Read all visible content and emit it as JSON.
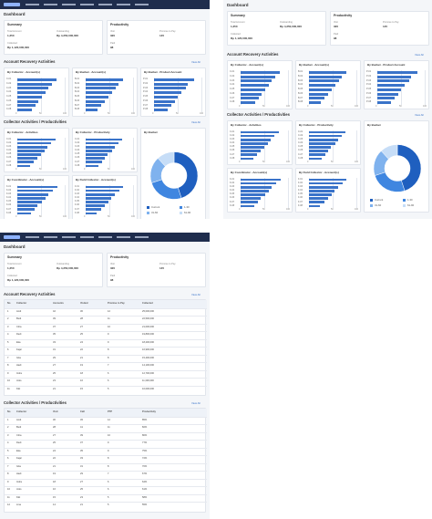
{
  "header": {
    "title": "Dashboard"
  },
  "summary": {
    "title": "Summary",
    "items": [
      {
        "label": "Total Account",
        "value": "1,250"
      },
      {
        "label": "Outstanding",
        "value": "Rp 4,250,000,000"
      },
      {
        "label": "Collected",
        "value": "Rp 1,120,000,000"
      }
    ]
  },
  "productivity": {
    "title": "Productivity",
    "items": [
      {
        "label": "Visit",
        "value": "320"
      },
      {
        "label": "Promise to Pay",
        "value": "145"
      },
      {
        "label": "Paid",
        "value": "98"
      }
    ]
  },
  "sections": [
    {
      "title": "Account Recovery Activities",
      "link": "View All"
    },
    {
      "title": "Collector Activities / Productivities",
      "link": "View All"
    }
  ],
  "chart_data": [
    {
      "type": "bar",
      "title": "By Collector - Account(s)",
      "categories": [
        "C-01",
        "C-02",
        "C-03",
        "C-04",
        "C-05",
        "C-06",
        "C-07",
        "C-08"
      ],
      "series": [
        {
          "name": "Account",
          "color": "#3a73c9",
          "values": [
            82,
            74,
            66,
            60,
            52,
            45,
            38,
            30
          ]
        }
      ],
      "xlim": [
        0,
        100
      ],
      "xticks": [
        0,
        50,
        100
      ]
    },
    {
      "type": "bar",
      "title": "By Bucket - Account(s)",
      "categories": [
        "B-01",
        "B-02",
        "B-03",
        "B-04",
        "B-05",
        "B-06",
        "B-07",
        "B-08"
      ],
      "series": [
        {
          "name": "Account",
          "color": "#3a73c9",
          "values": [
            78,
            70,
            63,
            55,
            48,
            40,
            33,
            25
          ]
        }
      ],
      "xlim": [
        0,
        100
      ],
      "xticks": [
        0,
        50,
        100
      ]
    },
    {
      "type": "bar",
      "title": "By Bucket - Product Account",
      "categories": [
        "P-01",
        "P-02",
        "P-03",
        "P-04",
        "P-05",
        "P-06",
        "P-07",
        "P-08"
      ],
      "series": [
        {
          "name": "Account",
          "color": "#3a73c9",
          "values": [
            85,
            72,
            68,
            58,
            50,
            44,
            36,
            28
          ]
        }
      ],
      "xlim": [
        0,
        100
      ],
      "xticks": [
        0,
        50,
        100
      ]
    },
    {
      "type": "bar",
      "title": "By Collector - Activities",
      "categories": [
        "C-01",
        "C-02",
        "C-03",
        "C-04",
        "C-05",
        "C-06",
        "C-07",
        "C-08"
      ],
      "series": [
        {
          "name": "Activities",
          "color": "#3a73c9",
          "values": [
            80,
            72,
            64,
            57,
            50,
            42,
            35,
            27
          ]
        }
      ],
      "xlim": [
        0,
        100
      ],
      "xticks": [
        0,
        50,
        100
      ]
    },
    {
      "type": "bar",
      "title": "By Collector - Productivity",
      "categories": [
        "C-01",
        "C-02",
        "C-03",
        "C-04",
        "C-05",
        "C-06",
        "C-07",
        "C-08"
      ],
      "series": [
        {
          "name": "Productivity",
          "color": "#3a73c9",
          "values": [
            76,
            69,
            61,
            56,
            47,
            41,
            34,
            26
          ]
        }
      ],
      "xlim": [
        0,
        100
      ],
      "xticks": [
        0,
        50,
        100
      ]
    },
    {
      "type": "bar",
      "title": "By Coordinator - Account(s)",
      "categories": [
        "K-01",
        "K-02",
        "K-03",
        "K-04",
        "K-05",
        "K-06",
        "K-07",
        "K-08"
      ],
      "series": [
        {
          "name": "Account",
          "color": "#3a73c9",
          "values": [
            84,
            75,
            65,
            59,
            51,
            43,
            37,
            29
          ]
        }
      ],
      "xlim": [
        0,
        100
      ],
      "xticks": [
        0,
        50,
        100
      ]
    },
    {
      "type": "bar",
      "title": "By Field Collector - Account(s)",
      "categories": [
        "F-01",
        "F-02",
        "F-03",
        "F-04",
        "F-05",
        "F-06",
        "F-07",
        "F-08"
      ],
      "series": [
        {
          "name": "Account",
          "color": "#3a73c9",
          "values": [
            79,
            71,
            62,
            54,
            49,
            41,
            32,
            24
          ]
        }
      ],
      "xlim": [
        0,
        100
      ],
      "xticks": [
        0,
        50,
        100
      ]
    },
    {
      "type": "pie",
      "title": "By Bucket",
      "categories": [
        "Current",
        "1-30",
        "31-60",
        "61-90"
      ],
      "values": [
        45,
        25,
        18,
        12
      ],
      "colors": [
        "#1f5fbf",
        "#3f86e0",
        "#7fb2ee",
        "#c6ddf7"
      ]
    }
  ],
  "tables": [
    {
      "title": "Account Recovery Activities",
      "link": "View All",
      "columns": [
        "No",
        "Collector",
        "Accounts",
        "Visited",
        "Promise to Pay",
        "Collected"
      ],
      "rows": [
        [
          "1",
          "Andi",
          "42",
          "30",
          "12",
          "25,000,000"
        ],
        [
          "2",
          "Budi",
          "39",
          "28",
          "11",
          "22,500,000"
        ],
        [
          "3",
          "Citra",
          "37",
          "27",
          "10",
          "21,000,000"
        ],
        [
          "4",
          "Dedi",
          "35",
          "25",
          "9",
          "19,800,000"
        ],
        [
          "5",
          "Eka",
          "33",
          "24",
          "9",
          "18,200,000"
        ],
        [
          "6",
          "Fajar",
          "31",
          "22",
          "8",
          "16,900,000"
        ],
        [
          "7",
          "Gita",
          "29",
          "21",
          "8",
          "15,400,000"
        ],
        [
          "8",
          "Hadi",
          "27",
          "19",
          "7",
          "14,100,000"
        ],
        [
          "9",
          "Indra",
          "25",
          "18",
          "6",
          "12,700,000"
        ],
        [
          "10",
          "Joko",
          "23",
          "16",
          "6",
          "11,300,000"
        ],
        [
          "11",
          "Kiki",
          "21",
          "15",
          "5",
          "10,000,000"
        ]
      ]
    },
    {
      "title": "Collector Activities / Productivities",
      "link": "View All",
      "columns": [
        "No",
        "Collector",
        "Visit",
        "Call",
        "PTP",
        "Productivity"
      ],
      "rows": [
        [
          "1",
          "Andi",
          "30",
          "45",
          "12",
          "85%"
        ],
        [
          "2",
          "Budi",
          "28",
          "41",
          "11",
          "82%"
        ],
        [
          "3",
          "Citra",
          "27",
          "39",
          "10",
          "80%"
        ],
        [
          "4",
          "Dedi",
          "25",
          "37",
          "9",
          "77%"
        ],
        [
          "5",
          "Eka",
          "24",
          "35",
          "9",
          "75%"
        ],
        [
          "6",
          "Fajar",
          "22",
          "33",
          "8",
          "72%"
        ],
        [
          "7",
          "Gita",
          "21",
          "31",
          "8",
          "70%"
        ],
        [
          "8",
          "Hadi",
          "19",
          "29",
          "7",
          "67%"
        ],
        [
          "9",
          "Indra",
          "18",
          "27",
          "6",
          "64%"
        ],
        [
          "10",
          "Joko",
          "16",
          "25",
          "6",
          "61%"
        ],
        [
          "11",
          "Kiki",
          "15",
          "23",
          "5",
          "58%"
        ],
        [
          "12",
          "Lina",
          "14",
          "21",
          "5",
          "55%"
        ]
      ]
    }
  ]
}
